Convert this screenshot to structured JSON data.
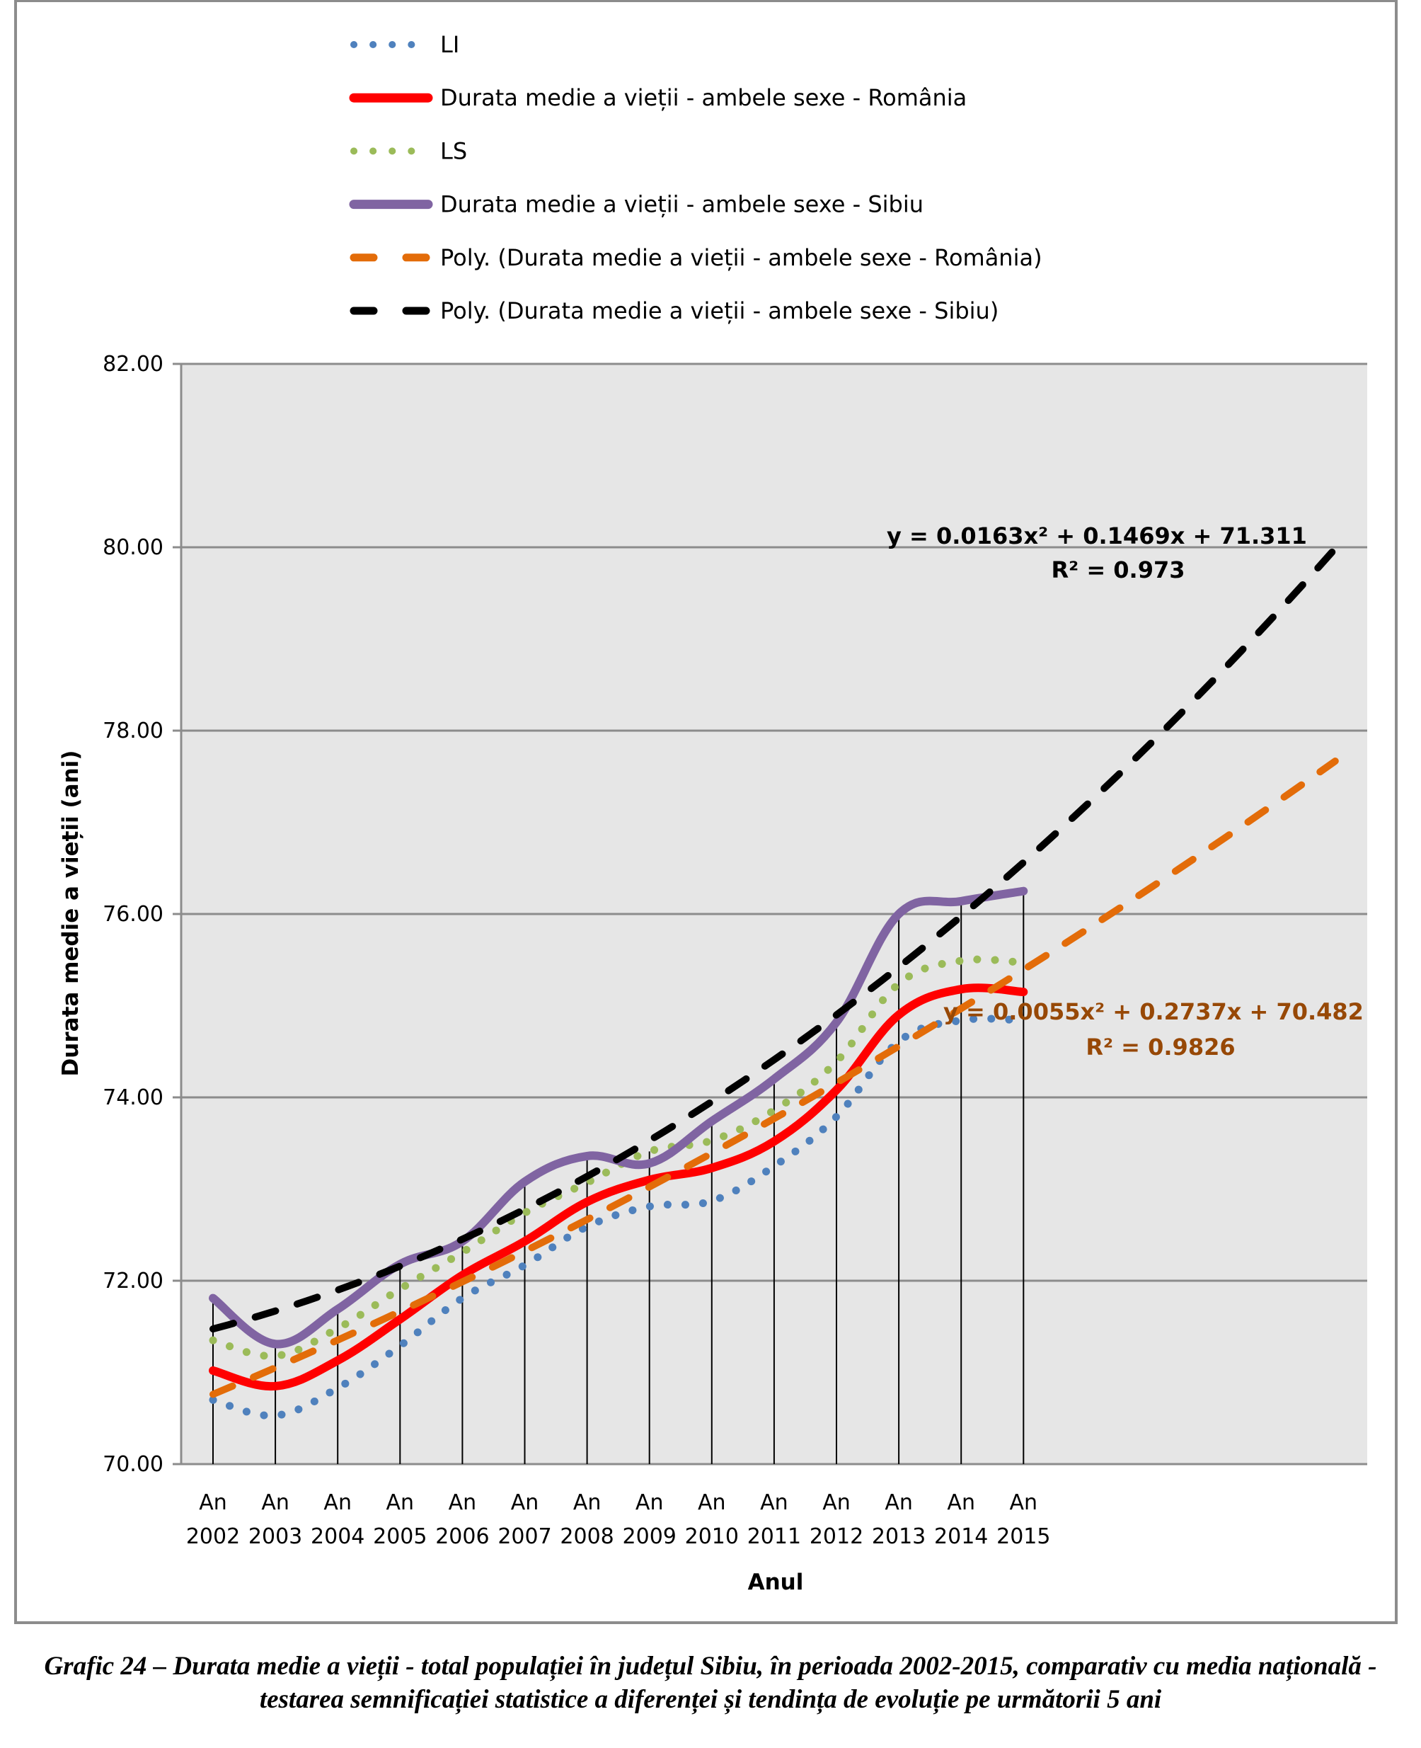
{
  "chart_data": {
    "type": "line",
    "title": "",
    "xlabel": "Anul",
    "ylabel": "Durata medie a vieții (ani)",
    "ylim": [
      70,
      82
    ],
    "yticks": [
      "70.00",
      "72.00",
      "74.00",
      "76.00",
      "78.00",
      "80.00",
      "82.00"
    ],
    "ytick_values": [
      70,
      72,
      74,
      76,
      78,
      80,
      82
    ],
    "grid": true,
    "legend_position": "top",
    "categories": [
      [
        "An",
        "2002"
      ],
      [
        "An",
        "2003"
      ],
      [
        "An",
        "2004"
      ],
      [
        "An",
        "2005"
      ],
      [
        "An",
        "2006"
      ],
      [
        "An",
        "2007"
      ],
      [
        "An",
        "2008"
      ],
      [
        "An",
        "2009"
      ],
      [
        "An",
        "2010"
      ],
      [
        "An",
        "2011"
      ],
      [
        "An",
        "2012"
      ],
      [
        "An",
        "2013"
      ],
      [
        "An",
        "2014"
      ],
      [
        "An",
        "2015"
      ]
    ],
    "series": [
      {
        "name": "LI",
        "style": "dotted",
        "color": "#4f81bd",
        "values": [
          70.7,
          70.53,
          70.83,
          71.29,
          71.81,
          72.17,
          72.59,
          72.81,
          72.87,
          73.25,
          73.79,
          74.61,
          74.84,
          74.84
        ]
      },
      {
        "name": "Durata medie a vieții - ambele sexe - România",
        "style": "solid",
        "color": "#ff0000",
        "values": [
          71.02,
          70.85,
          71.13,
          71.58,
          72.06,
          72.43,
          72.86,
          73.1,
          73.23,
          73.52,
          74.08,
          74.9,
          75.18,
          75.15
        ]
      },
      {
        "name": "LS",
        "style": "dotted",
        "color": "#9bbb59",
        "values": [
          71.35,
          71.18,
          71.48,
          71.91,
          72.31,
          72.74,
          73.07,
          73.41,
          73.53,
          73.86,
          74.39,
          75.24,
          75.49,
          75.47
        ]
      },
      {
        "name": "Durata medie a vieții - ambele sexe - Sibiu",
        "style": "solid",
        "color": "#8064a2",
        "values": [
          71.81,
          71.31,
          71.69,
          72.18,
          72.43,
          73.08,
          73.36,
          73.28,
          73.74,
          74.2,
          74.82,
          76.0,
          76.14,
          76.25
        ]
      }
    ],
    "trendlines": [
      {
        "name": "Poly. (Durata medie a vieții - ambele sexe - România)",
        "style": "dashed",
        "color": "#e36c09",
        "equation": "y = 0.0055x² + 0.2737x + 70.482",
        "r2": "R² = 0.9826",
        "coefficients": [
          0.0055,
          0.2737,
          70.482
        ],
        "x_range": [
          1,
          19
        ],
        "label_color": "#974806"
      },
      {
        "name": "Poly. (Durata medie a vieții - ambele sexe - Sibiu)",
        "style": "dashed",
        "color": "#000000",
        "equation": "y = 0.0163x² + 0.1469x + 71.311",
        "r2": "R² = 0.973",
        "coefficients": [
          0.0163,
          0.1469,
          71.311
        ],
        "x_range": [
          1,
          19
        ],
        "label_color": "#000000"
      }
    ]
  },
  "legend": [
    {
      "label": "LI",
      "style": "dotted",
      "color": "#4f81bd"
    },
    {
      "label": "Durata medie a vieții - ambele sexe - România",
      "style": "solid",
      "color": "#ff0000"
    },
    {
      "label": "LS",
      "style": "dotted",
      "color": "#9bbb59"
    },
    {
      "label": "Durata medie a vieții - ambele sexe - Sibiu",
      "style": "solid",
      "color": "#8064a2"
    },
    {
      "label": "Poly. (Durata medie a vieții - ambele sexe - România)",
      "style": "dashed",
      "color": "#e36c09"
    },
    {
      "label": "Poly. (Durata medie a vieții - ambele sexe - Sibiu)",
      "style": "dashed",
      "color": "#000000"
    }
  ],
  "colors": {
    "plot_background": "#e6e6e6",
    "gridline": "#8c8c8c",
    "frame": "#8c8c8c"
  },
  "caption": "Grafic 24 – Durata medie a vieții - total populației în județul Sibiu, în perioada 2002-2015, comparativ cu media națională - testarea semnificației statistice a diferenței și tendința de evoluție pe următorii 5 ani"
}
